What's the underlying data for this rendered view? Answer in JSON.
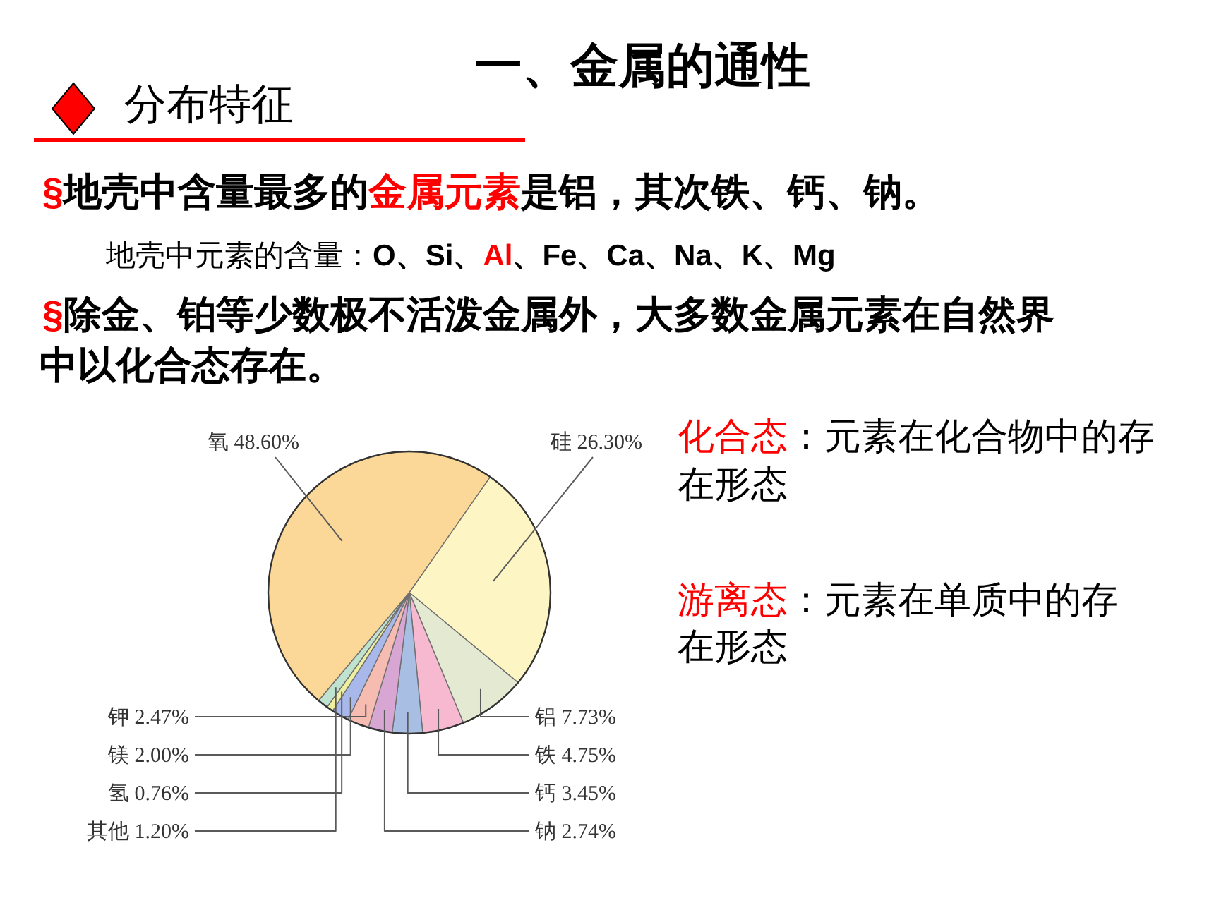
{
  "chart_data": {
    "type": "pie",
    "title": "一、金属的通性",
    "subtitle": "分布特征",
    "categories": [
      "氧",
      "硅",
      "铝",
      "铁",
      "钙",
      "钠",
      "钾",
      "镁",
      "氢",
      "其他"
    ],
    "values": [
      48.6,
      26.3,
      7.73,
      4.75,
      3.45,
      2.74,
      2.47,
      2.0,
      0.76,
      1.2
    ],
    "value_labels": [
      "48.60%",
      "26.30%",
      "7.73%",
      "4.75%",
      "3.45%",
      "2.74%",
      "2.47%",
      "2.00%",
      "0.76%",
      "1.20%"
    ],
    "colors": [
      "#fcd898",
      "#fdf6c4",
      "#e4ead2",
      "#f6b9cf",
      "#a8bfe3",
      "#d7a6d3",
      "#f6bcb2",
      "#a9b8ea",
      "#eef0a0",
      "#bfe3cf"
    ],
    "annotations": [
      "§",
      "地壳中含量最多的",
      "金属元素",
      "是铝，其次铁、钙、钠。",
      "地壳中元素的含量：",
      "O、Si、",
      "Al",
      "、Fe、Ca、Na、K、Mg",
      "§",
      "除金、铂等少数极不活泼金属外，大多数金属元素在自然界",
      "中以化合态存在。",
      "化合态",
      "：元素在化合物中的存",
      "在形态",
      "游离态",
      "：元素在单质中的存",
      "在形态"
    ]
  }
}
